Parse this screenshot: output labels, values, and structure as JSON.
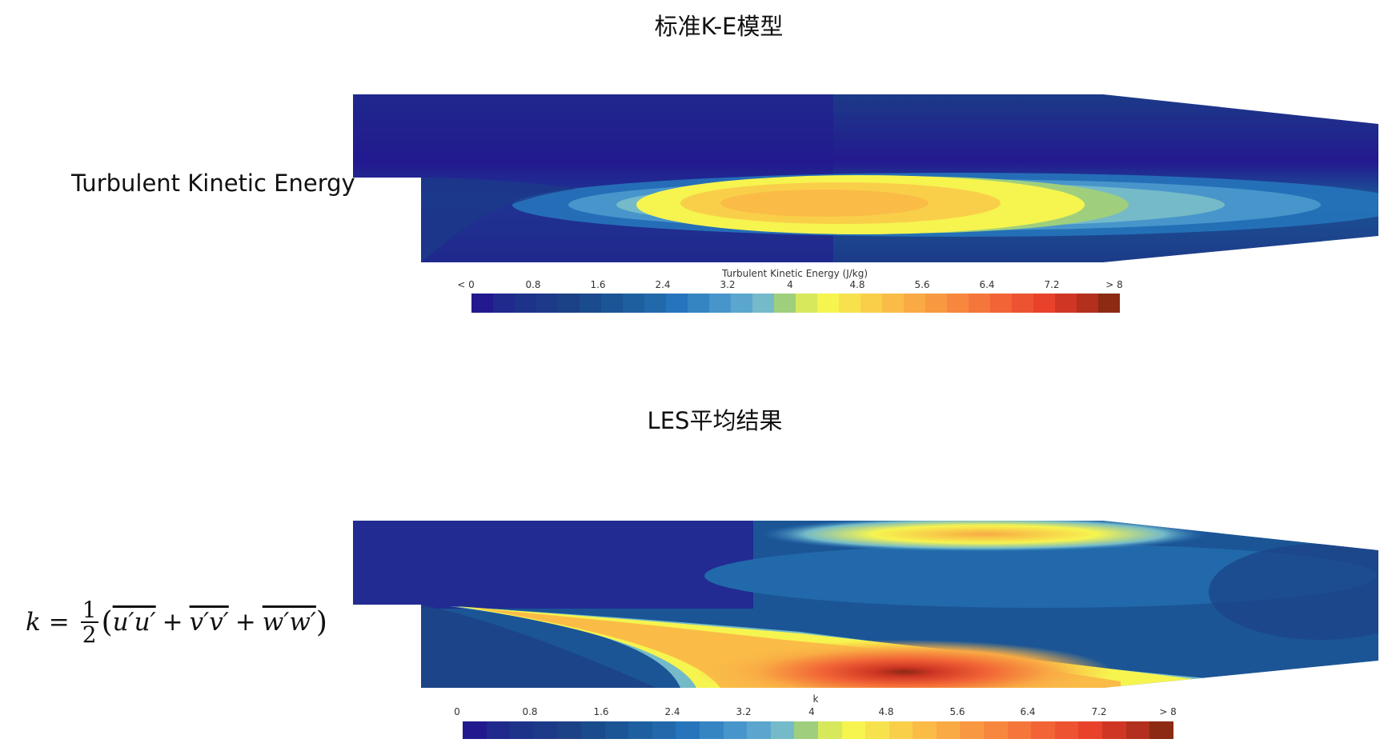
{
  "top_panel": {
    "title": "标准K-E模型",
    "side_label": "Turbulent Kinetic Energy",
    "colorbar": {
      "title": "Turbulent Kinetic Energy (J/kg)",
      "ticks": [
        "< 0",
        "0.8",
        "1.6",
        "2.4",
        "3.2",
        "4",
        "4.8",
        "5.6",
        "6.4",
        "7.2",
        "> 8"
      ]
    }
  },
  "bottom_panel": {
    "title": "LES平均结果",
    "formula": {
      "lhs": "k",
      "eq": "=",
      "num": "1",
      "den": "2",
      "open": "(",
      "t1": "u′u′",
      "plus1": "+",
      "t2": "v′v′",
      "plus2": "+",
      "t3": "w′w′",
      "close": ")"
    },
    "colorbar": {
      "title": "k",
      "ticks": [
        "0",
        "0.8",
        "1.6",
        "2.4",
        "3.2",
        "4",
        "4.8",
        "5.6",
        "6.4",
        "7.2",
        "> 8"
      ]
    }
  },
  "colormap": [
    "#23198f",
    "#1f2a8c",
    "#1d338a",
    "#1c3a88",
    "#1c4286",
    "#1a4b8c",
    "#1b5596",
    "#1e609f",
    "#2169aa",
    "#2674bb",
    "#3585c3",
    "#4795cb",
    "#5aa6cf",
    "#74bac8",
    "#9fcf7d",
    "#d8e85c",
    "#f6f44f",
    "#f7e24d",
    "#f9cf4a",
    "#fabc47",
    "#f9aa44",
    "#f89941",
    "#f7873e",
    "#f5763a",
    "#f26436",
    "#ee5331",
    "#e8422b",
    "#cf3724",
    "#b2301d",
    "#8c2a14"
  ],
  "chart_data": [
    {
      "type": "heatmap",
      "title": "标准K-E模型",
      "description": "Contour of turbulent kinetic energy in a backward-facing-step / tapered channel (standard k-epsilon model)",
      "side_label": "Turbulent Kinetic Energy",
      "colorbar_label": "Turbulent Kinetic Energy (J/kg)",
      "colorbar_range": [
        0,
        8
      ],
      "colorbar_ticks": [
        "< 0",
        "0.8",
        "1.6",
        "2.4",
        "3.2",
        "4",
        "4.8",
        "5.6",
        "6.4",
        "7.2",
        "> 8"
      ],
      "peak_value_approx": 5.2,
      "peak_region": "shear layer downstream of step, mid-channel"
    },
    {
      "type": "heatmap",
      "title": "LES平均结果",
      "description": "Time-averaged LES turbulent kinetic energy in same geometry",
      "colorbar_label": "k",
      "colorbar_range": [
        0,
        8
      ],
      "colorbar_ticks": [
        "0",
        "0.8",
        "1.6",
        "2.4",
        "3.2",
        "4",
        "4.8",
        "5.6",
        "6.4",
        "7.2",
        "> 8"
      ],
      "formula": "k = 1/2 (u'u' + v'v' + w'w')",
      "peak_value_approx": 8,
      "peak_region": "near lower wall downstream of step"
    }
  ]
}
